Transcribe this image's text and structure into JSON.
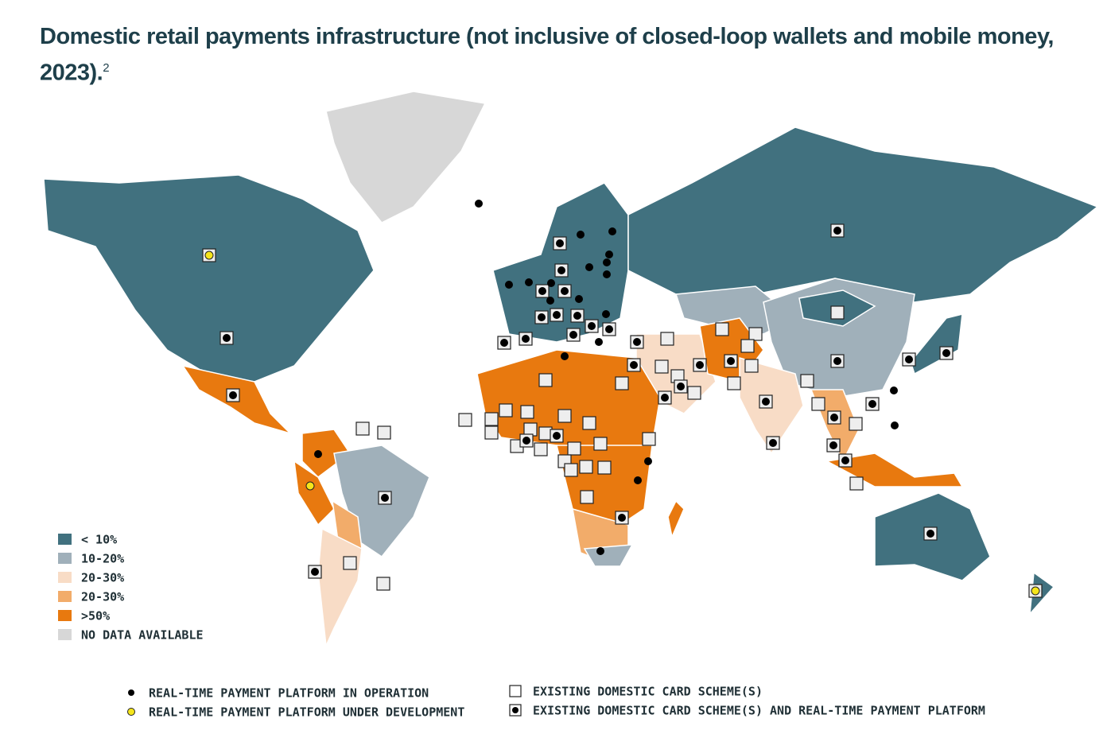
{
  "title": "Domestic retail payments infrastructure  (not inclusive of closed-loop wallets and mobile money, 2023).",
  "footnote": "2",
  "legend": {
    "shares": [
      {
        "label": "< 10%",
        "color": "#41717f"
      },
      {
        "label": "10-20%",
        "color": "#a0b0ba"
      },
      {
        "label": "20-30%",
        "color": "#f8dcc6"
      },
      {
        "label": "20-30%",
        "color": "#f2ac6a"
      },
      {
        "label": ">50%",
        "color": "#e8790f"
      },
      {
        "label": "NO DATA AVAILABLE",
        "color": "#d7d7d7"
      }
    ],
    "markers": [
      {
        "label": "REAL-TIME PAYMENT PLATFORM IN OPERATION"
      },
      {
        "label": "REAL-TIME PAYMENT PLATFORM UNDER DEVELOPMENT"
      },
      {
        "label": "EXISTING DOMESTIC CARD SCHEME(S)"
      },
      {
        "label": "EXISTING DOMESTIC CARD SCHEME(S) AND REAL-TIME PAYMENT PLATFORM"
      }
    ]
  }
}
